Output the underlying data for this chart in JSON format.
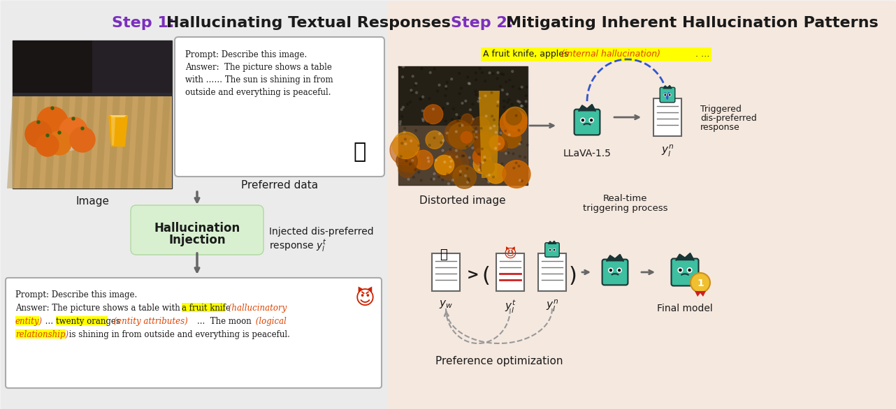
{
  "bg_color": "#f2f2f2",
  "left_panel_bg": "#ebebeb",
  "right_panel_bg": "#f5e8df",
  "title_color_step": "#7B2FBE",
  "title_color_rest": "#1a1a1a",
  "title1_step": "Step 1: ",
  "title1_rest": "Hallucinating Textual Responses",
  "title2_step": "Step 2: ",
  "title2_rest": "Mitigating Inherent Hallucination Patterns",
  "injection_box_color": "#d8f0d0",
  "injection_border_color": "#b0d8a0",
  "arrow_color": "#666666",
  "dashed_arrow_color": "#3355cc",
  "pref_dashed_color": "#999999",
  "robot_color": "#3dbfa0",
  "robot_edge": "#1a3535",
  "doc_edge": "#666666",
  "highlight_yellow": "#ffff00",
  "italic_red": "#dd4400",
  "label_image": "Image",
  "label_preferred": "Preferred data",
  "label_injection": "Hallucination\nInjection",
  "label_injected_line1": "Injected dis-preferred",
  "label_injected_line2": "response $y_l^t$",
  "pref_text": "Prompt: Describe this image.\nAnswer: The picture shows a table\nwith …… The sun is shining in from\noutside and everything is peaceful.",
  "label_distorted": "Distorted image",
  "label_llava": "LLaVA-1.5",
  "label_triggered_line1": "Triggered",
  "label_triggered_line2": "dis-preferred",
  "label_triggered_line3": "response",
  "label_yn_top": "$y_l^n$",
  "label_realtime1": "Real-time",
  "label_realtime2": "triggering process",
  "label_yw": "$y_w$",
  "label_yt": "$y_l^t$",
  "label_yn_bot": "$y_l^n$",
  "label_final": "Final model",
  "label_pref_opt": "Preference optimization",
  "halluc_text_normal": "A fruit knife, apples ",
  "halluc_text_italic": "(internal hallucination)",
  "halluc_text_end": ". …"
}
